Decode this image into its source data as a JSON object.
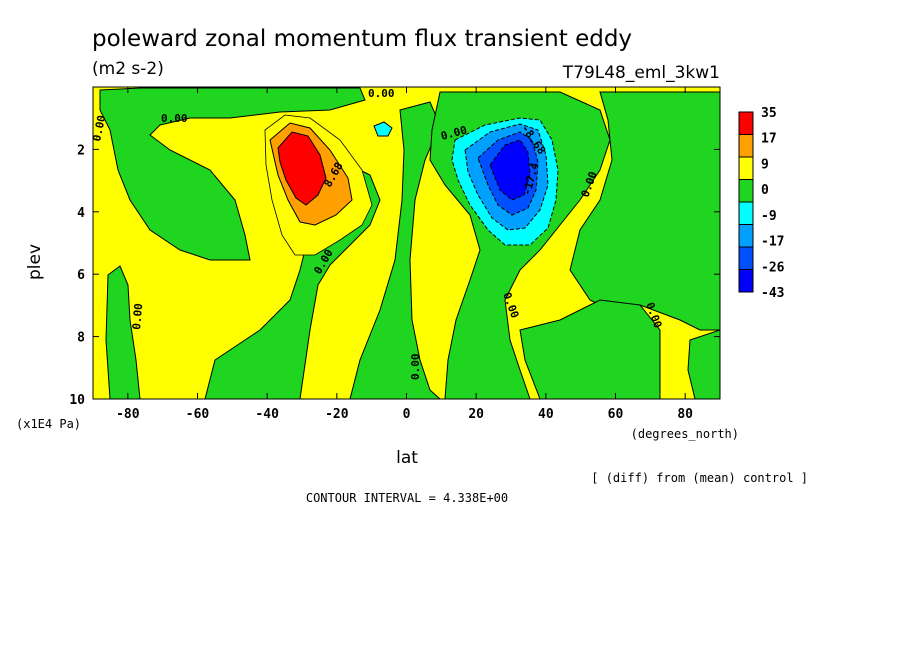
{
  "title": "poleward zonal momentum flux transient eddy",
  "units": "(m2 s-2)",
  "experiment": "T79L48_eml_3kw1",
  "note": "[ (diff) from (mean) control ]",
  "contour_interval": "CONTOUR INTERVAL = 4.338E+00",
  "chart_data": {
    "type": "heatmap",
    "xlabel": "lat",
    "xunits": "(degrees_north)",
    "ylabel": "plev",
    "yunits": "(x1E4 Pa)",
    "xlim": [
      -90,
      90
    ],
    "ylim": [
      10,
      0
    ],
    "x_ticks": [
      -80,
      -60,
      -40,
      -20,
      0,
      20,
      40,
      60,
      80
    ],
    "y_ticks": [
      2,
      4,
      6,
      8,
      10
    ],
    "colorbar": {
      "levels": [
        "35",
        "17",
        "9",
        "0",
        "-9",
        "-17",
        "-26",
        "-43"
      ],
      "colors": [
        "#ff0000",
        "#ff9f00",
        "#ffff00",
        "#1fd51f",
        "#00ffff",
        "#00a0ff",
        "#0050ff",
        "#0000ff"
      ]
    },
    "contour_labels": [
      "0.00",
      "0.00",
      "0.00",
      "0.00",
      "0.00",
      "0.00",
      "0.00",
      "0.00",
      "0.00",
      "0.00",
      "8.68",
      "-8.68",
      "-17.4"
    ],
    "features": [
      {
        "sign": "positive",
        "center_lat": -30,
        "center_plev": 2.5,
        "peak": 35
      },
      {
        "sign": "negative",
        "center_lat": 30,
        "center_plev": 2.6,
        "peak": -43
      }
    ]
  }
}
